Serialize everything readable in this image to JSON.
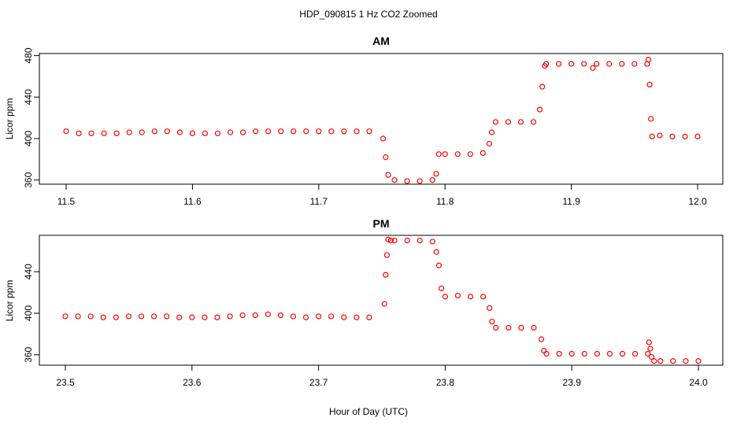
{
  "figure": {
    "title": "HDP_090815  1 Hz CO2 Zoomed",
    "xlabel": "Hour of Day (UTC)"
  },
  "chart_data": [
    {
      "type": "scatter",
      "title": "AM",
      "ylabel": "Licor ppm",
      "xlim": [
        11.5,
        12.0
      ],
      "ylim": [
        356,
        482
      ],
      "xticks": [
        11.5,
        11.6,
        11.7,
        11.8,
        11.9,
        12.0
      ],
      "xtick_labels": [
        "11.5",
        "11.6",
        "11.7",
        "11.8",
        "11.9",
        "12.0"
      ],
      "yticks": [
        360,
        400,
        440,
        480
      ],
      "ytick_labels": [
        "360",
        "400",
        "440",
        "480"
      ],
      "point_color": "#ff0000",
      "grid": false,
      "series": [
        {
          "x": [
            11.5,
            11.51,
            11.52,
            11.53,
            11.54,
            11.55,
            11.56,
            11.57,
            11.58,
            11.59,
            11.6,
            11.61,
            11.62,
            11.63,
            11.64,
            11.65,
            11.66,
            11.67,
            11.68,
            11.69,
            11.7,
            11.71,
            11.72,
            11.73,
            11.74,
            11.751,
            11.753,
            11.755,
            11.76,
            11.77,
            11.78,
            11.79,
            11.793,
            11.795,
            11.8,
            11.81,
            11.82,
            11.83,
            11.835,
            11.837,
            11.84,
            11.85,
            11.86,
            11.87,
            11.875,
            11.877,
            11.879,
            11.88,
            11.89,
            11.9,
            11.91,
            11.917,
            11.92,
            11.93,
            11.94,
            11.95,
            11.96,
            11.961,
            11.962,
            11.963,
            11.964,
            11.97,
            11.98,
            11.99,
            12.0
          ],
          "y": [
            407,
            405,
            405,
            405,
            405,
            406,
            406,
            407,
            407,
            406,
            405,
            405,
            405,
            406,
            406,
            407,
            407,
            407,
            407,
            407,
            407,
            407,
            407,
            407,
            407,
            400,
            382,
            365,
            360,
            359,
            359,
            360,
            366,
            385,
            385,
            385,
            385,
            386,
            395,
            406,
            416,
            416,
            416,
            416,
            428,
            450,
            470,
            472,
            472,
            472,
            472,
            468,
            472,
            472,
            472,
            472,
            472,
            476,
            452,
            419,
            402,
            403,
            402,
            402,
            402
          ]
        }
      ]
    },
    {
      "type": "scatter",
      "title": "PM",
      "ylabel": "Licor ppm",
      "xlim": [
        23.5,
        24.0
      ],
      "ylim": [
        350,
        475
      ],
      "xticks": [
        23.5,
        23.6,
        23.7,
        23.8,
        23.9,
        24.0
      ],
      "xtick_labels": [
        "23.5",
        "23.6",
        "23.7",
        "23.8",
        "23.9",
        "24.0"
      ],
      "yticks": [
        360,
        400,
        440
      ],
      "ytick_labels": [
        "360",
        "400",
        "440"
      ],
      "point_color": "#ff0000",
      "grid": false,
      "series": [
        {
          "x": [
            23.5,
            23.51,
            23.52,
            23.53,
            23.54,
            23.55,
            23.56,
            23.57,
            23.58,
            23.59,
            23.6,
            23.61,
            23.62,
            23.63,
            23.64,
            23.65,
            23.66,
            23.67,
            23.68,
            23.69,
            23.7,
            23.71,
            23.72,
            23.73,
            23.74,
            23.752,
            23.753,
            23.754,
            23.755,
            23.757,
            23.76,
            23.77,
            23.78,
            23.79,
            23.793,
            23.795,
            23.797,
            23.8,
            23.81,
            23.82,
            23.83,
            23.835,
            23.837,
            23.84,
            23.85,
            23.86,
            23.87,
            23.876,
            23.878,
            23.88,
            23.89,
            23.9,
            23.91,
            23.92,
            23.93,
            23.94,
            23.95,
            23.96,
            23.961,
            23.962,
            23.963,
            23.965,
            23.97,
            23.98,
            23.99,
            24.0
          ],
          "y": [
            397,
            397,
            397,
            396,
            396,
            397,
            397,
            397,
            397,
            396,
            396,
            396,
            396,
            397,
            398,
            398,
            399,
            398,
            397,
            396,
            397,
            397,
            396,
            396,
            396,
            409,
            437,
            456,
            471,
            470,
            470,
            470,
            470,
            469,
            459,
            446,
            424,
            416,
            417,
            416,
            416,
            405,
            392,
            386,
            386,
            386,
            386,
            375,
            364,
            361,
            361,
            361,
            361,
            361,
            361,
            361,
            361,
            361,
            372,
            366,
            358,
            354,
            354,
            354,
            354,
            354
          ]
        }
      ]
    }
  ]
}
